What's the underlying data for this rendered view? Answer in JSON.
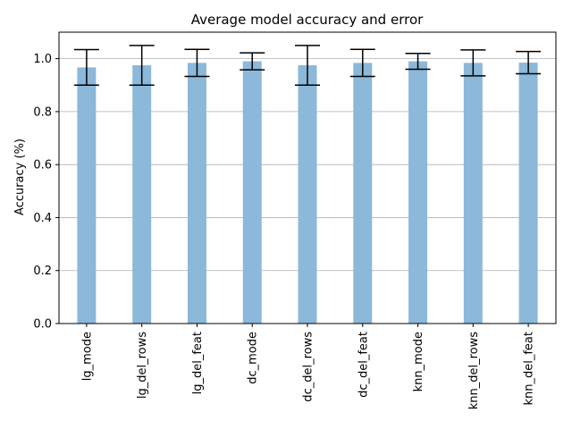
{
  "chart_data": {
    "type": "bar",
    "title": "Average model accuracy and error",
    "xlabel": "",
    "ylabel": "Accuracy (%)",
    "ylim": [
      0,
      1.1
    ],
    "yticks": [
      0.0,
      0.2,
      0.4,
      0.6,
      0.8,
      1.0
    ],
    "ytick_labels": [
      "0.0",
      "0.2",
      "0.4",
      "0.6",
      "0.8",
      "1.0"
    ],
    "grid": "horizontal",
    "categories": [
      "lg_mode",
      "lg_del_rows",
      "lg_del_feat",
      "dc_mode",
      "dc_del_rows",
      "dc_del_feat",
      "knn_mode",
      "knn_del_rows",
      "knn_del_feat"
    ],
    "values": [
      0.967,
      0.975,
      0.984,
      0.99,
      0.975,
      0.984,
      0.99,
      0.984,
      0.985
    ],
    "errors": [
      0.067,
      0.075,
      0.051,
      0.032,
      0.075,
      0.051,
      0.03,
      0.049,
      0.042
    ],
    "bar_color": "#8cb8d9",
    "errorbar_color": "#000000"
  }
}
